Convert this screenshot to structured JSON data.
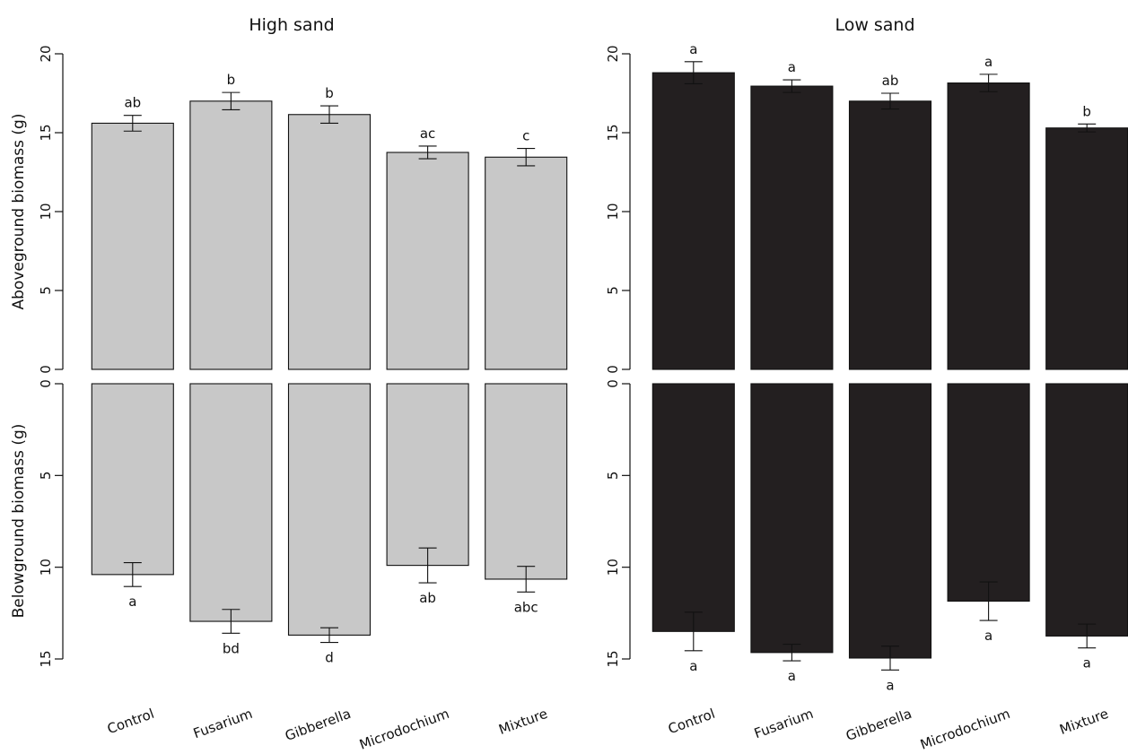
{
  "chart_data": [
    {
      "type": "bar",
      "panel": "top-left",
      "title": "High sand",
      "ylabel": "Aboveground biomass (g)",
      "categories": [
        "Control",
        "Fusarium",
        "Gibberella",
        "Microdochium",
        "Mixture"
      ],
      "values": [
        15.6,
        17.0,
        16.15,
        13.75,
        13.45
      ],
      "errors": [
        0.5,
        0.55,
        0.55,
        0.4,
        0.55
      ],
      "letters": [
        "ab",
        "b",
        "b",
        "ac",
        "c"
      ],
      "ylim": [
        0,
        20
      ],
      "yticks": [
        0,
        5,
        10,
        15,
        20
      ],
      "color": "#c8c8c8",
      "direction": "up"
    },
    {
      "type": "bar",
      "panel": "bottom-left",
      "title": "",
      "ylabel": "Belowground biomass (g)",
      "categories": [
        "Control",
        "Fusarium",
        "Gibberella",
        "Microdochium",
        "Mixture"
      ],
      "values": [
        10.4,
        12.95,
        13.7,
        9.9,
        10.65
      ],
      "errors": [
        0.65,
        0.65,
        0.4,
        0.95,
        0.7
      ],
      "letters": [
        "a",
        "bd",
        "d",
        "ab",
        "abc"
      ],
      "ylim": [
        0,
        15
      ],
      "yticks": [
        0,
        5,
        10,
        15
      ],
      "color": "#c8c8c8",
      "direction": "down"
    },
    {
      "type": "bar",
      "panel": "top-right",
      "title": "Low sand",
      "ylabel": "",
      "categories": [
        "Control",
        "Fusarium",
        "Gibberella",
        "Microdochium",
        "Mixture"
      ],
      "values": [
        18.8,
        17.95,
        17.0,
        18.15,
        15.3
      ],
      "errors": [
        0.7,
        0.4,
        0.5,
        0.55,
        0.25
      ],
      "letters": [
        "a",
        "a",
        "ab",
        "a",
        "b"
      ],
      "ylim": [
        0,
        20
      ],
      "yticks": [
        0,
        5,
        10,
        15,
        20
      ],
      "color": "#231f20",
      "direction": "up"
    },
    {
      "type": "bar",
      "panel": "bottom-right",
      "title": "",
      "ylabel": "",
      "categories": [
        "Control",
        "Fusarium",
        "Gibberella",
        "Microdochium",
        "Mixture"
      ],
      "values": [
        13.5,
        14.65,
        14.95,
        11.85,
        13.75
      ],
      "errors": [
        1.05,
        0.45,
        0.65,
        1.05,
        0.65
      ],
      "letters": [
        "a",
        "a",
        "a",
        "a",
        "a"
      ],
      "ylim": [
        0,
        15
      ],
      "yticks": [
        0,
        5,
        10,
        15
      ],
      "color": "#231f20",
      "direction": "down"
    }
  ]
}
